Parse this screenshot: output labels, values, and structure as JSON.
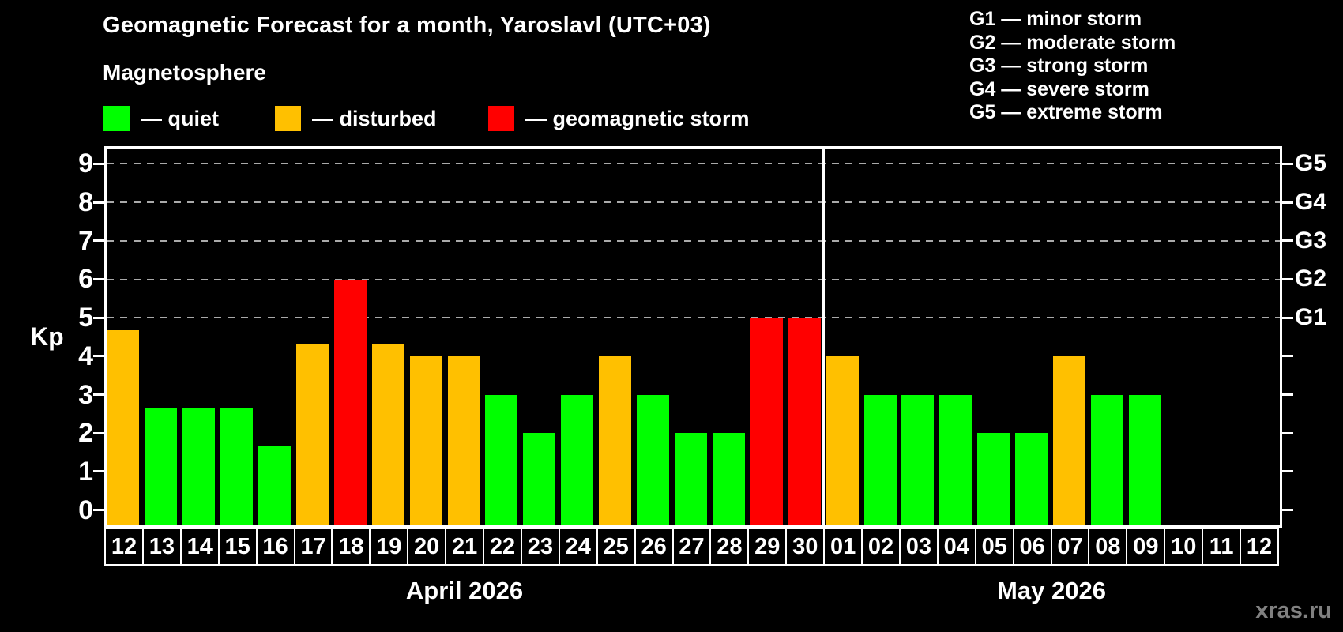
{
  "title": "Geomagnetic Forecast for a month, Yaroslavl (UTC+03)",
  "subtitle": "Magnetosphere",
  "legend": {
    "items": [
      {
        "label": "— quiet",
        "status": "quiet"
      },
      {
        "label": "— disturbed",
        "status": "disturbed"
      },
      {
        "label": "— geomagnetic storm",
        "status": "storm"
      }
    ]
  },
  "storm_scale_legend": [
    "G1 — minor storm",
    "G2 — moderate storm",
    "G3 — strong storm",
    "G4 — severe storm",
    "G5 — extreme storm"
  ],
  "watermark": "xras.ru",
  "colors": {
    "quiet": "#00FF00",
    "disturbed": "#FFC000",
    "storm": "#FF0000",
    "axis": "#FFFFFF",
    "grid": "#AAAAAA",
    "watermark": "#808080"
  },
  "chart_data": {
    "type": "bar",
    "ylabel": "Kp",
    "ylim": [
      -0.4,
      9.4
    ],
    "grid": "dashed horizontal at Kp 5-9",
    "legend_position": "top",
    "kp_ticks": [
      0,
      1,
      2,
      3,
      4,
      5,
      6,
      7,
      8,
      9
    ],
    "gridlines": [
      5,
      6,
      7,
      8,
      9
    ],
    "g_labels": [
      {
        "label": "G1",
        "kp": 5
      },
      {
        "label": "G2",
        "kp": 6
      },
      {
        "label": "G3",
        "kp": 7
      },
      {
        "label": "G4",
        "kp": 8
      },
      {
        "label": "G5",
        "kp": 9
      }
    ],
    "months": [
      {
        "label": "April 2026",
        "days": [
          {
            "day": "12",
            "kp": 4.67,
            "status": "disturbed"
          },
          {
            "day": "13",
            "kp": 2.67,
            "status": "quiet"
          },
          {
            "day": "14",
            "kp": 2.67,
            "status": "quiet"
          },
          {
            "day": "15",
            "kp": 2.67,
            "status": "quiet"
          },
          {
            "day": "16",
            "kp": 1.67,
            "status": "quiet"
          },
          {
            "day": "17",
            "kp": 4.33,
            "status": "disturbed"
          },
          {
            "day": "18",
            "kp": 6.0,
            "status": "storm"
          },
          {
            "day": "19",
            "kp": 4.33,
            "status": "disturbed"
          },
          {
            "day": "20",
            "kp": 4.0,
            "status": "disturbed"
          },
          {
            "day": "21",
            "kp": 4.0,
            "status": "disturbed"
          },
          {
            "day": "22",
            "kp": 3.0,
            "status": "quiet"
          },
          {
            "day": "23",
            "kp": 2.0,
            "status": "quiet"
          },
          {
            "day": "24",
            "kp": 3.0,
            "status": "quiet"
          },
          {
            "day": "25",
            "kp": 4.0,
            "status": "disturbed"
          },
          {
            "day": "26",
            "kp": 3.0,
            "status": "quiet"
          },
          {
            "day": "27",
            "kp": 2.0,
            "status": "quiet"
          },
          {
            "day": "28",
            "kp": 2.0,
            "status": "quiet"
          },
          {
            "day": "29",
            "kp": 5.0,
            "status": "storm"
          },
          {
            "day": "30",
            "kp": 5.0,
            "status": "storm"
          }
        ]
      },
      {
        "label": "May 2026",
        "days": [
          {
            "day": "01",
            "kp": 4.0,
            "status": "disturbed"
          },
          {
            "day": "02",
            "kp": 3.0,
            "status": "quiet"
          },
          {
            "day": "03",
            "kp": 3.0,
            "status": "quiet"
          },
          {
            "day": "04",
            "kp": 3.0,
            "status": "quiet"
          },
          {
            "day": "05",
            "kp": 2.0,
            "status": "quiet"
          },
          {
            "day": "06",
            "kp": 2.0,
            "status": "quiet"
          },
          {
            "day": "07",
            "kp": 4.0,
            "status": "disturbed"
          },
          {
            "day": "08",
            "kp": 3.0,
            "status": "quiet"
          },
          {
            "day": "09",
            "kp": 3.0,
            "status": "quiet"
          },
          {
            "day": "10",
            "kp": null,
            "status": null
          },
          {
            "day": "11",
            "kp": null,
            "status": null
          },
          {
            "day": "12",
            "kp": null,
            "status": null
          }
        ]
      }
    ]
  }
}
